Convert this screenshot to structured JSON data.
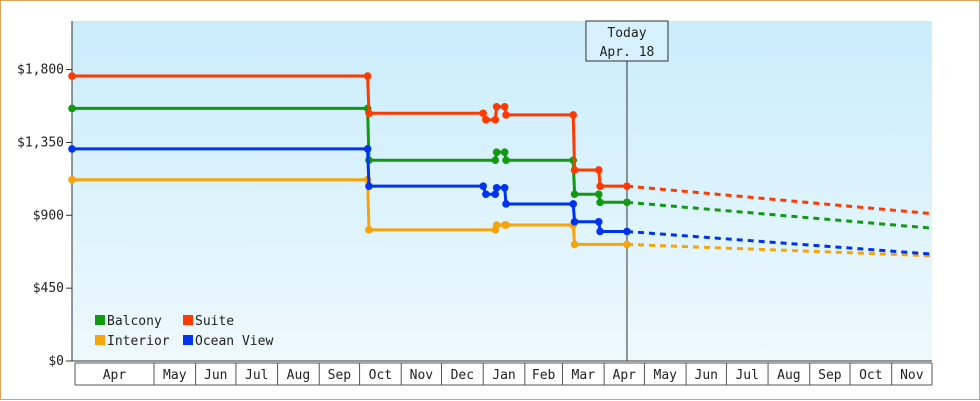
{
  "chart_data": {
    "type": "line",
    "title": "",
    "xlabel": "",
    "ylabel": "",
    "ylim": [
      0,
      2100
    ],
    "yticks": [
      {
        "value": 0,
        "label": "$0"
      },
      {
        "value": 450,
        "label": "$450"
      },
      {
        "value": 900,
        "label": "$900"
      },
      {
        "value": 1350,
        "label": "$1,350"
      },
      {
        "value": 1800,
        "label": "$1,800"
      }
    ],
    "xlim": [
      "2024-03-01",
      "2025-12-01"
    ],
    "x_tick_labels": [
      "Apr",
      "May",
      "Jun",
      "Jul",
      "Aug",
      "Sep",
      "Oct",
      "Nov",
      "Dec",
      "Jan",
      "Feb",
      "Mar",
      "Apr",
      "May",
      "Jun",
      "Jul",
      "Aug",
      "Sep",
      "Oct",
      "Nov"
    ],
    "x_tick_dates": [
      "2024-04-01",
      "2024-05-01",
      "2024-06-01",
      "2024-07-01",
      "2024-08-01",
      "2024-09-01",
      "2024-10-01",
      "2024-11-01",
      "2024-12-01",
      "2025-01-01",
      "2025-02-01",
      "2025-03-01",
      "2025-04-01",
      "2025-05-01",
      "2025-06-01",
      "2025-07-01",
      "2025-08-01",
      "2025-09-01",
      "2025-10-01",
      "2025-11-01"
    ],
    "grid": false,
    "legend_position": "bottom-left",
    "today": {
      "label_line1": "Today",
      "label_line2": "Apr. 18",
      "date": "2025-04-18"
    },
    "series": [
      {
        "name": "Balcony",
        "color": "#119911",
        "values": [
          {
            "x": "2024-03-01",
            "y": 1560
          },
          {
            "x": "2024-10-07",
            "y": 1560
          },
          {
            "x": "2024-10-08",
            "y": 1240
          },
          {
            "x": "2025-01-10",
            "y": 1240
          },
          {
            "x": "2025-01-11",
            "y": 1290
          },
          {
            "x": "2025-01-17",
            "y": 1290
          },
          {
            "x": "2025-01-18",
            "y": 1240
          },
          {
            "x": "2025-03-09",
            "y": 1240
          },
          {
            "x": "2025-03-10",
            "y": 1030
          },
          {
            "x": "2025-03-28",
            "y": 1030
          },
          {
            "x": "2025-03-29",
            "y": 980
          },
          {
            "x": "2025-04-18",
            "y": 980
          }
        ],
        "forecast": [
          {
            "x": "2025-04-18",
            "y": 980
          },
          {
            "x": "2025-12-01",
            "y": 820
          }
        ]
      },
      {
        "name": "Suite",
        "color": "#ff3a00",
        "values": [
          {
            "x": "2024-03-01",
            "y": 1760
          },
          {
            "x": "2024-10-07",
            "y": 1760
          },
          {
            "x": "2024-10-08",
            "y": 1530
          },
          {
            "x": "2025-01-01",
            "y": 1530
          },
          {
            "x": "2025-01-03",
            "y": 1490
          },
          {
            "x": "2025-01-10",
            "y": 1490
          },
          {
            "x": "2025-01-11",
            "y": 1570
          },
          {
            "x": "2025-01-17",
            "y": 1570
          },
          {
            "x": "2025-01-18",
            "y": 1520
          },
          {
            "x": "2025-03-09",
            "y": 1520
          },
          {
            "x": "2025-03-10",
            "y": 1180
          },
          {
            "x": "2025-03-28",
            "y": 1180
          },
          {
            "x": "2025-03-29",
            "y": 1080
          },
          {
            "x": "2025-04-18",
            "y": 1080
          }
        ],
        "forecast": [
          {
            "x": "2025-04-18",
            "y": 1080
          },
          {
            "x": "2025-12-01",
            "y": 910
          }
        ]
      },
      {
        "name": "Interior",
        "color": "#f7a30a",
        "values": [
          {
            "x": "2024-03-01",
            "y": 1120
          },
          {
            "x": "2024-10-07",
            "y": 1120
          },
          {
            "x": "2024-10-08",
            "y": 810
          },
          {
            "x": "2025-01-10",
            "y": 810
          },
          {
            "x": "2025-01-11",
            "y": 840
          },
          {
            "x": "2025-01-17",
            "y": 840
          },
          {
            "x": "2025-01-18",
            "y": 840
          },
          {
            "x": "2025-03-09",
            "y": 840
          },
          {
            "x": "2025-03-10",
            "y": 720
          },
          {
            "x": "2025-04-18",
            "y": 720
          }
        ],
        "forecast": [
          {
            "x": "2025-04-18",
            "y": 720
          },
          {
            "x": "2025-12-01",
            "y": 650
          }
        ]
      },
      {
        "name": "Ocean View",
        "color": "#0033ee",
        "values": [
          {
            "x": "2024-03-01",
            "y": 1310
          },
          {
            "x": "2024-10-07",
            "y": 1310
          },
          {
            "x": "2024-10-08",
            "y": 1080
          },
          {
            "x": "2025-01-01",
            "y": 1080
          },
          {
            "x": "2025-01-03",
            "y": 1030
          },
          {
            "x": "2025-01-10",
            "y": 1030
          },
          {
            "x": "2025-01-11",
            "y": 1070
          },
          {
            "x": "2025-01-17",
            "y": 1070
          },
          {
            "x": "2025-01-18",
            "y": 970
          },
          {
            "x": "2025-03-09",
            "y": 970
          },
          {
            "x": "2025-03-10",
            "y": 860
          },
          {
            "x": "2025-03-28",
            "y": 860
          },
          {
            "x": "2025-03-29",
            "y": 800
          },
          {
            "x": "2025-04-18",
            "y": 800
          }
        ],
        "forecast": [
          {
            "x": "2025-04-18",
            "y": 800
          },
          {
            "x": "2025-12-01",
            "y": 660
          }
        ]
      }
    ]
  }
}
